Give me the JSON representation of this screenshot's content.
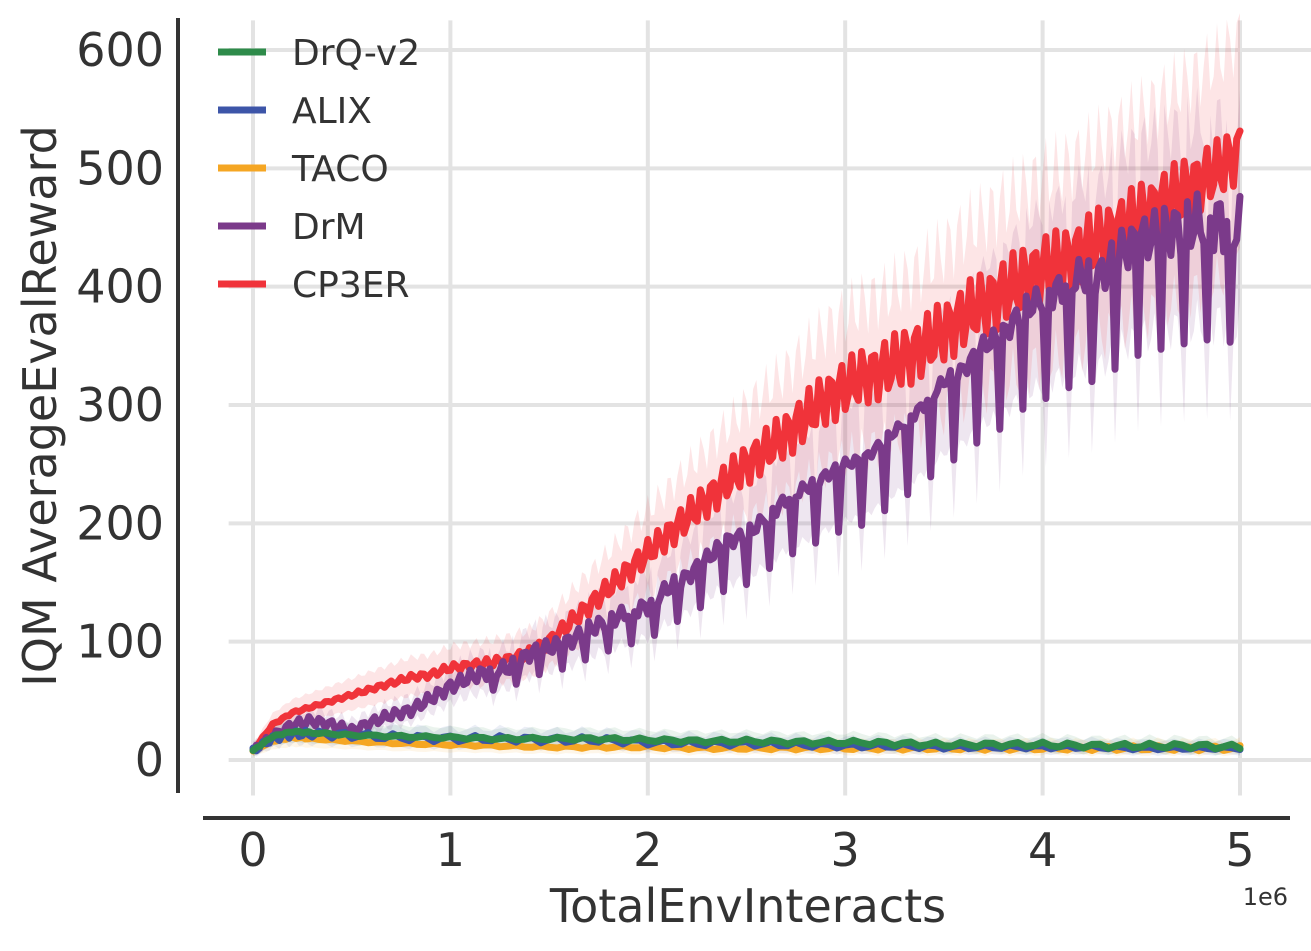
{
  "chart_data": {
    "type": "line",
    "xlabel": "TotalEnvInteracts",
    "ylabel": "IQM AverageEvalReward",
    "x_exponent_label": "1e6",
    "xlim": [
      -0.25,
      5.25
    ],
    "ylim": [
      -30,
      625
    ],
    "x_ticks": [
      0,
      1,
      2,
      3,
      4,
      5
    ],
    "x_tick_labels": [
      "0",
      "1",
      "2",
      "3",
      "4",
      "5"
    ],
    "y_ticks": [
      0,
      100,
      200,
      300,
      400,
      500,
      600
    ],
    "y_tick_labels": [
      "0",
      "100",
      "200",
      "300",
      "400",
      "500",
      "600"
    ],
    "grid": true,
    "legend_position": "top-left",
    "series": [
      {
        "name": "DrQ-v2",
        "color": "#2e8b4a",
        "x": [
          0,
          0.1,
          0.2,
          0.3,
          0.5,
          0.75,
          1.0,
          1.25,
          1.5,
          1.75,
          2.0,
          2.25,
          2.5,
          2.75,
          3.0,
          3.25,
          3.5,
          3.75,
          4.0,
          4.25,
          4.5,
          4.75,
          5.0
        ],
        "y": [
          8,
          20,
          24,
          23,
          21,
          20,
          19,
          18,
          18,
          18,
          17,
          16,
          16,
          15,
          15,
          14,
          13,
          13,
          13,
          12,
          12,
          12,
          11
        ]
      },
      {
        "name": "ALIX",
        "color": "#3d55a8",
        "x": [
          0,
          0.1,
          0.2,
          0.3,
          0.5,
          0.75,
          1.0,
          1.25,
          1.5,
          1.75,
          2.0,
          2.25,
          2.5,
          2.75,
          3.0,
          3.25,
          3.5,
          3.75,
          4.0,
          4.25,
          4.5,
          4.75,
          5.0
        ],
        "y": [
          8,
          18,
          22,
          22,
          21,
          19,
          18,
          18,
          17,
          17,
          15,
          14,
          14,
          13,
          12,
          12,
          11,
          11,
          11,
          11,
          10,
          10,
          10
        ]
      },
      {
        "name": "TACO",
        "color": "#f5a623",
        "x": [
          0,
          0.1,
          0.2,
          0.3,
          0.5,
          0.75,
          1.0,
          1.25,
          1.5,
          1.75,
          2.0,
          2.25,
          2.5,
          2.75,
          3.0,
          3.25,
          3.5,
          3.75,
          4.0,
          4.25,
          4.5,
          4.75,
          5.0
        ],
        "y": [
          8,
          16,
          19,
          18,
          16,
          14,
          13,
          12,
          11,
          11,
          11,
          10,
          10,
          10,
          10,
          10,
          10,
          10,
          10,
          10,
          10,
          10,
          10
        ]
      },
      {
        "name": "DrM",
        "color": "#7b3a8a",
        "x": [
          0,
          0.1,
          0.2,
          0.3,
          0.4,
          0.5,
          0.6,
          0.7,
          0.8,
          0.9,
          1.0,
          1.1,
          1.2,
          1.3,
          1.4,
          1.5,
          1.6,
          1.7,
          1.8,
          1.9,
          2.0,
          2.1,
          2.2,
          2.3,
          2.4,
          2.5,
          2.6,
          2.7,
          2.8,
          2.9,
          3.0,
          3.1,
          3.2,
          3.3,
          3.4,
          3.5,
          3.6,
          3.7,
          3.8,
          3.9,
          4.0,
          4.1,
          4.2,
          4.3,
          4.4,
          4.5,
          4.6,
          4.7,
          4.8,
          4.9,
          5.0
        ],
        "y": [
          8,
          20,
          30,
          33,
          30,
          25,
          32,
          38,
          42,
          52,
          62,
          70,
          75,
          78,
          90,
          95,
          100,
          110,
          118,
          125,
          130,
          145,
          155,
          170,
          185,
          190,
          205,
          220,
          230,
          240,
          250,
          255,
          270,
          285,
          300,
          320,
          330,
          350,
          360,
          380,
          390,
          400,
          410,
          410,
          430,
          440,
          445,
          450,
          455,
          455,
          450
        ]
      },
      {
        "name": "CP3ER",
        "color": "#f0333a",
        "x": [
          0,
          0.1,
          0.2,
          0.3,
          0.4,
          0.5,
          0.6,
          0.7,
          0.8,
          0.9,
          1.0,
          1.1,
          1.2,
          1.3,
          1.4,
          1.5,
          1.6,
          1.7,
          1.8,
          1.9,
          2.0,
          2.1,
          2.2,
          2.3,
          2.4,
          2.5,
          2.6,
          2.7,
          2.8,
          2.9,
          3.0,
          3.1,
          3.2,
          3.3,
          3.4,
          3.5,
          3.6,
          3.7,
          3.8,
          3.9,
          4.0,
          4.1,
          4.2,
          4.3,
          4.4,
          4.5,
          4.6,
          4.7,
          4.8,
          4.9,
          5.0
        ],
        "y": [
          8,
          30,
          40,
          45,
          50,
          55,
          60,
          65,
          70,
          72,
          78,
          80,
          82,
          85,
          90,
          100,
          115,
          130,
          145,
          160,
          175,
          190,
          205,
          220,
          235,
          250,
          262,
          275,
          290,
          305,
          315,
          325,
          330,
          340,
          350,
          362,
          375,
          385,
          395,
          405,
          415,
          420,
          430,
          440,
          450,
          460,
          470,
          480,
          490,
          500,
          515
        ]
      }
    ]
  }
}
